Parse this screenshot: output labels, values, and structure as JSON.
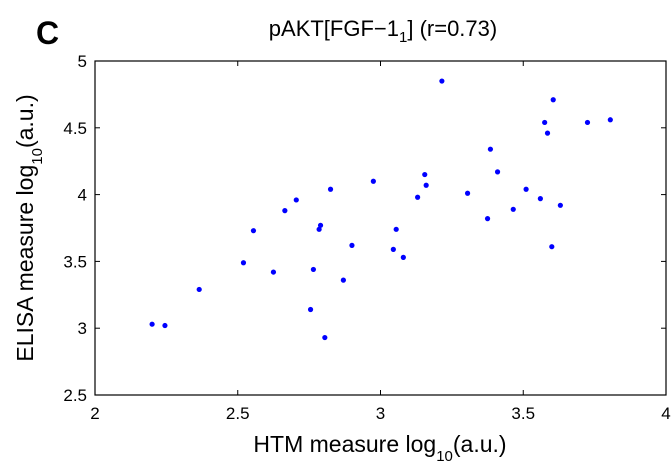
{
  "panel_label": "C",
  "chart_data": {
    "type": "scatter",
    "title": {
      "prefix": "pAKT[FGF−1",
      "subscript": "1",
      "suffix": "] (r=0.73)"
    },
    "xlabel": {
      "main": "HTM measure log",
      "subscript": "10",
      "suffix": "(a.u.)"
    },
    "ylabel": {
      "main": "ELISA measure log",
      "subscript": "10",
      "suffix": "(a.u.)"
    },
    "xlim": [
      2,
      4
    ],
    "ylim": [
      2.5,
      5
    ],
    "xticks": [
      2,
      2.5,
      3,
      3.5,
      4
    ],
    "yticks": [
      2.5,
      3,
      3.5,
      4,
      4.5,
      5
    ],
    "xtick_labels": [
      "2",
      "2.5",
      "3",
      "3.5",
      "4"
    ],
    "ytick_labels": [
      "2.5",
      "3",
      "3.5",
      "4",
      "4.5",
      "5"
    ],
    "grid": false,
    "marker_color": "#0000ff",
    "points": [
      {
        "x": 2.2,
        "y": 3.03
      },
      {
        "x": 2.245,
        "y": 3.02
      },
      {
        "x": 2.365,
        "y": 3.29
      },
      {
        "x": 2.52,
        "y": 3.49
      },
      {
        "x": 2.555,
        "y": 3.73
      },
      {
        "x": 2.625,
        "y": 3.42
      },
      {
        "x": 2.665,
        "y": 3.88
      },
      {
        "x": 2.705,
        "y": 3.96
      },
      {
        "x": 2.755,
        "y": 3.14
      },
      {
        "x": 2.765,
        "y": 3.44
      },
      {
        "x": 2.785,
        "y": 3.74
      },
      {
        "x": 2.79,
        "y": 3.77
      },
      {
        "x": 2.805,
        "y": 2.93
      },
      {
        "x": 2.825,
        "y": 4.04
      },
      {
        "x": 2.87,
        "y": 3.36
      },
      {
        "x": 2.9,
        "y": 3.62
      },
      {
        "x": 2.975,
        "y": 4.1
      },
      {
        "x": 3.045,
        "y": 3.59
      },
      {
        "x": 3.055,
        "y": 3.74
      },
      {
        "x": 3.08,
        "y": 3.53
      },
      {
        "x": 3.13,
        "y": 3.98
      },
      {
        "x": 3.155,
        "y": 4.15
      },
      {
        "x": 3.16,
        "y": 4.07
      },
      {
        "x": 3.215,
        "y": 4.85
      },
      {
        "x": 3.305,
        "y": 4.01
      },
      {
        "x": 3.375,
        "y": 3.82
      },
      {
        "x": 3.385,
        "y": 4.34
      },
      {
        "x": 3.41,
        "y": 4.17
      },
      {
        "x": 3.465,
        "y": 3.89
      },
      {
        "x": 3.51,
        "y": 4.04
      },
      {
        "x": 3.56,
        "y": 3.97
      },
      {
        "x": 3.575,
        "y": 4.54
      },
      {
        "x": 3.585,
        "y": 4.46
      },
      {
        "x": 3.6,
        "y": 3.61
      },
      {
        "x": 3.605,
        "y": 4.71
      },
      {
        "x": 3.63,
        "y": 3.92
      },
      {
        "x": 3.725,
        "y": 4.54
      },
      {
        "x": 3.805,
        "y": 4.56
      }
    ]
  }
}
